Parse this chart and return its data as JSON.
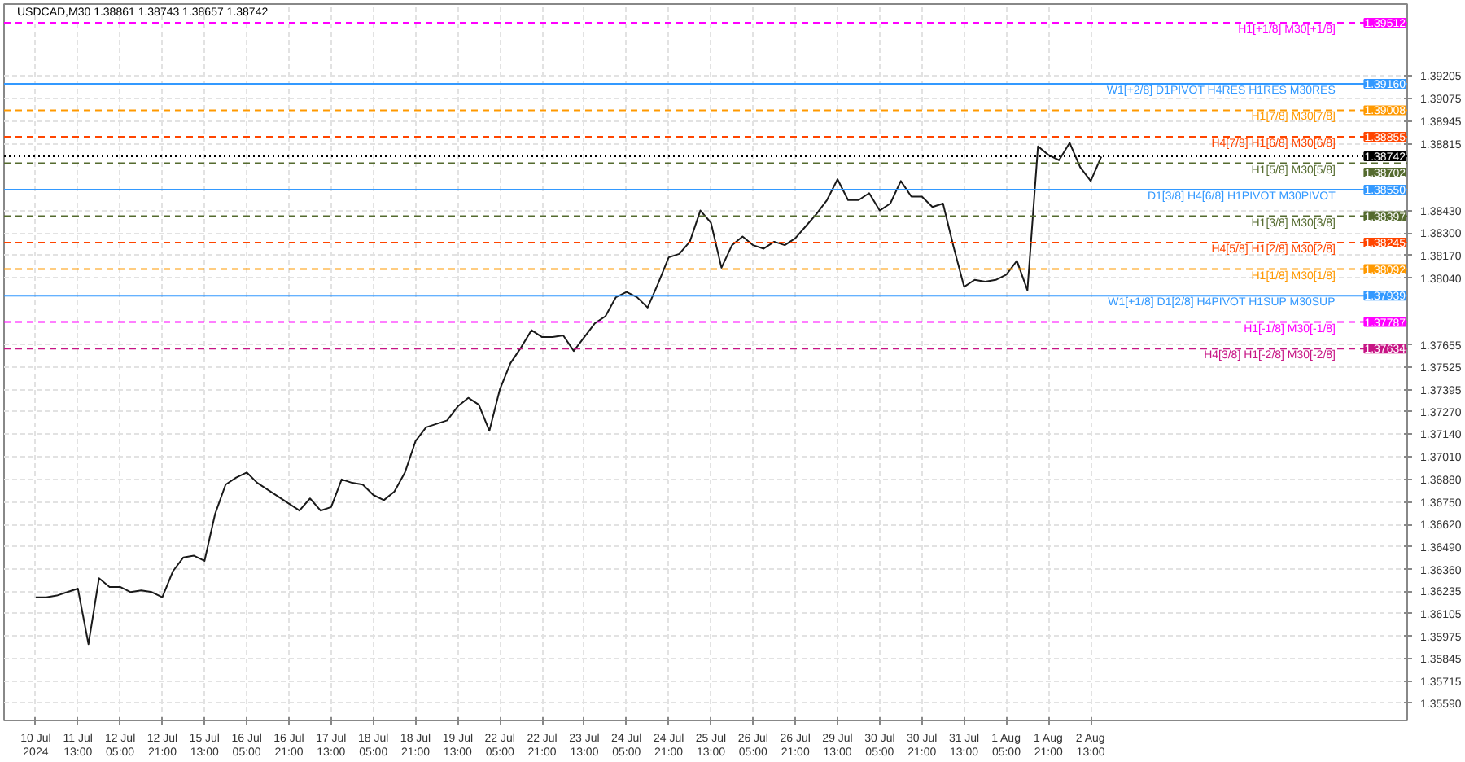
{
  "chart_data": {
    "type": "line",
    "title": "USDCAD,M30 1.38861 1.38743 1.38657 1.38742",
    "categories": [
      "10 Jul 2024",
      null,
      null,
      null,
      "11 Jul 13:00",
      null,
      null,
      null,
      "12 Jul 05:00",
      null,
      null,
      null,
      "12 Jul 21:00",
      null,
      null,
      null,
      "15 Jul 13:00",
      null,
      null,
      null,
      "16 Jul 05:00",
      null,
      null,
      null,
      "16 Jul 21:00",
      null,
      null,
      null,
      "17 Jul 13:00",
      null,
      null,
      null,
      "18 Jul 05:00",
      null,
      null,
      null,
      "18 Jul 21:00",
      null,
      null,
      null,
      "19 Jul 13:00",
      null,
      null,
      null,
      "22 Jul 05:00",
      null,
      null,
      null,
      "22 Jul 21:00",
      null,
      null,
      null,
      "23 Jul 13:00",
      null,
      null,
      null,
      "24 Jul 05:00",
      null,
      null,
      null,
      "24 Jul 21:00",
      null,
      null,
      null,
      "25 Jul 13:00",
      null,
      null,
      null,
      "26 Jul 05:00",
      null,
      null,
      null,
      "26 Jul 21:00",
      null,
      null,
      null,
      "29 Jul 13:00",
      null,
      null,
      null,
      "30 Jul 05:00",
      null,
      null,
      null,
      "30 Jul 21:00",
      null,
      null,
      null,
      "31 Jul 13:00",
      null,
      null,
      null,
      "1 Aug 05:00",
      null,
      null,
      null,
      "1 Aug 21:00",
      null,
      null,
      null,
      "2 Aug 13:00",
      null
    ],
    "series": [
      {
        "color": "#1a1a1a",
        "values": [
          1.362,
          1.362,
          1.3621,
          1.3623,
          1.3625,
          1.3593,
          1.3631,
          1.3626,
          1.3626,
          1.3623,
          1.3624,
          1.3623,
          1.362,
          1.3635,
          1.3643,
          1.3644,
          1.3641,
          1.3668,
          1.3685,
          1.3689,
          1.3692,
          1.3686,
          1.3682,
          1.3678,
          1.3674,
          1.367,
          1.3677,
          1.367,
          1.3672,
          1.3688,
          1.3686,
          1.3685,
          1.3679,
          1.3676,
          1.3681,
          1.3692,
          1.371,
          1.3718,
          1.372,
          1.3722,
          1.373,
          1.3735,
          1.3731,
          1.3716,
          1.374,
          1.3755,
          1.3764,
          1.3774,
          1.377,
          1.377,
          1.3771,
          1.3762,
          1.377,
          1.3778,
          1.3782,
          1.3793,
          1.3796,
          1.3793,
          1.3787,
          1.3801,
          1.3816,
          1.3818,
          1.3825,
          1.3843,
          1.3836,
          1.381,
          1.3823,
          1.3828,
          1.3823,
          1.3821,
          1.3825,
          1.3823,
          1.3827,
          1.3834,
          1.3841,
          1.3849,
          1.3861,
          1.3849,
          1.3849,
          1.3853,
          1.3843,
          1.3847,
          1.386,
          1.3851,
          1.3851,
          1.3845,
          1.3847,
          1.3822,
          1.3799,
          1.3803,
          1.3802,
          1.3803,
          1.3806,
          1.3814,
          1.3797,
          1.388,
          1.3875,
          1.3872,
          1.3882,
          1.3868,
          1.386,
          1.3874
        ]
      }
    ],
    "ylim": [
      1.3549,
      1.3962
    ],
    "yticks": [
      {
        "value": 1.3559,
        "label": "1.35590"
      },
      {
        "value": 1.35715,
        "label": "1.35715"
      },
      {
        "value": 1.35845,
        "label": "1.35845"
      },
      {
        "value": 1.35975,
        "label": "1.35975"
      },
      {
        "value": 1.36105,
        "label": "1.36105"
      },
      {
        "value": 1.36235,
        "label": "1.36235"
      },
      {
        "value": 1.3636,
        "label": "1.36360"
      },
      {
        "value": 1.3649,
        "label": "1.36490"
      },
      {
        "value": 1.3662,
        "label": "1.36620"
      },
      {
        "value": 1.3675,
        "label": "1.36750"
      },
      {
        "value": 1.3688,
        "label": "1.36880"
      },
      {
        "value": 1.3701,
        "label": "1.37010"
      },
      {
        "value": 1.3714,
        "label": "1.37140"
      },
      {
        "value": 1.3727,
        "label": "1.37270"
      },
      {
        "value": 1.37395,
        "label": "1.37395"
      },
      {
        "value": 1.37525,
        "label": "1.37525"
      },
      {
        "value": 1.37655,
        "label": "1.37655"
      },
      {
        "value": 1.3804,
        "label": "1.38040"
      },
      {
        "value": 1.3817,
        "label": "1.38170"
      },
      {
        "value": 1.383,
        "label": "1.38300"
      },
      {
        "value": 1.3843,
        "label": "1.38430"
      },
      {
        "value": 1.38815,
        "label": "1.38815"
      },
      {
        "value": 1.38945,
        "label": "1.38945"
      },
      {
        "value": 1.39075,
        "label": "1.39075"
      },
      {
        "value": 1.39205,
        "label": "1.39205"
      }
    ],
    "grid": true,
    "ref_lines": [
      {
        "axis": "y",
        "value": 1.39512,
        "label": "H1[+1/8] M30[+1/8]",
        "color": "#ff00ff",
        "line_style": "dashed"
      },
      {
        "axis": "y",
        "value": 1.3916,
        "label": "W1[+2/8] D1PIVOT H4RES H1RES M30RES",
        "color": "#3399ff",
        "line_style": "solid"
      },
      {
        "axis": "y",
        "value": 1.39008,
        "label": "H1[7/8] M30[7/8]",
        "color": "#ff9900",
        "line_style": "dashed"
      },
      {
        "axis": "y",
        "value": 1.38855,
        "label": "H4[7/8] H1[6/8] M30[6/8]",
        "color": "#ff4500",
        "line_style": "dashed"
      },
      {
        "axis": "y",
        "value": 1.38742,
        "color": "#000000",
        "line_style": "dotted"
      },
      {
        "axis": "y",
        "value": 1.38702,
        "label": "H1[5/8] M30[5/8]",
        "color": "#556b2f",
        "line_style": "dashed"
      },
      {
        "axis": "y",
        "value": 1.3855,
        "label": "D1[3/8] H4[6/8] H1PIVOT M30PIVOT",
        "color": "#3399ff",
        "line_style": "solid"
      },
      {
        "axis": "y",
        "value": 1.38397,
        "label": "H1[3/8] M30[3/8]",
        "color": "#556b2f",
        "line_style": "dashed"
      },
      {
        "axis": "y",
        "value": 1.38245,
        "label": "H4[5/8] H1[2/8] M30[2/8]",
        "color": "#ff4500",
        "line_style": "dashed"
      },
      {
        "axis": "y",
        "value": 1.38092,
        "label": "H1[1/8] M30[1/8]",
        "color": "#ff9900",
        "line_style": "dashed"
      },
      {
        "axis": "y",
        "value": 1.37939,
        "label": "W1[+1/8] D1[2/8] H4PIVOT H1SUP M30SUP",
        "color": "#3399ff",
        "line_style": "solid"
      },
      {
        "axis": "y",
        "value": 1.37787,
        "label": "H1[-1/8] M30[-1/8]",
        "color": "#ff00ff",
        "line_style": "dashed"
      },
      {
        "axis": "y",
        "value": 1.37634,
        "label": "H4[3/8] H1[-2/8] M30[-2/8]",
        "color": "#c71585",
        "line_style": "dashed"
      }
    ],
    "annotations": [
      {
        "text": "1.39512",
        "y": 1.39512
      },
      {
        "text": "1.39160",
        "y": 1.3916
      },
      {
        "text": "1.39008",
        "y": 1.39008
      },
      {
        "text": "1.38855",
        "y": 1.38855
      },
      {
        "text": "1.38742",
        "y": 1.38742
      },
      {
        "text": "1.38702",
        "y": 1.38702
      },
      {
        "text": "1.38550",
        "y": 1.3855
      },
      {
        "text": "1.38397",
        "y": 1.38397
      },
      {
        "text": "1.38245",
        "y": 1.38245
      },
      {
        "text": "1.38092",
        "y": 1.38092
      },
      {
        "text": "1.37939",
        "y": 1.37939
      },
      {
        "text": "1.37787",
        "y": 1.37787
      },
      {
        "text": "1.37634",
        "y": 1.37634
      }
    ]
  }
}
